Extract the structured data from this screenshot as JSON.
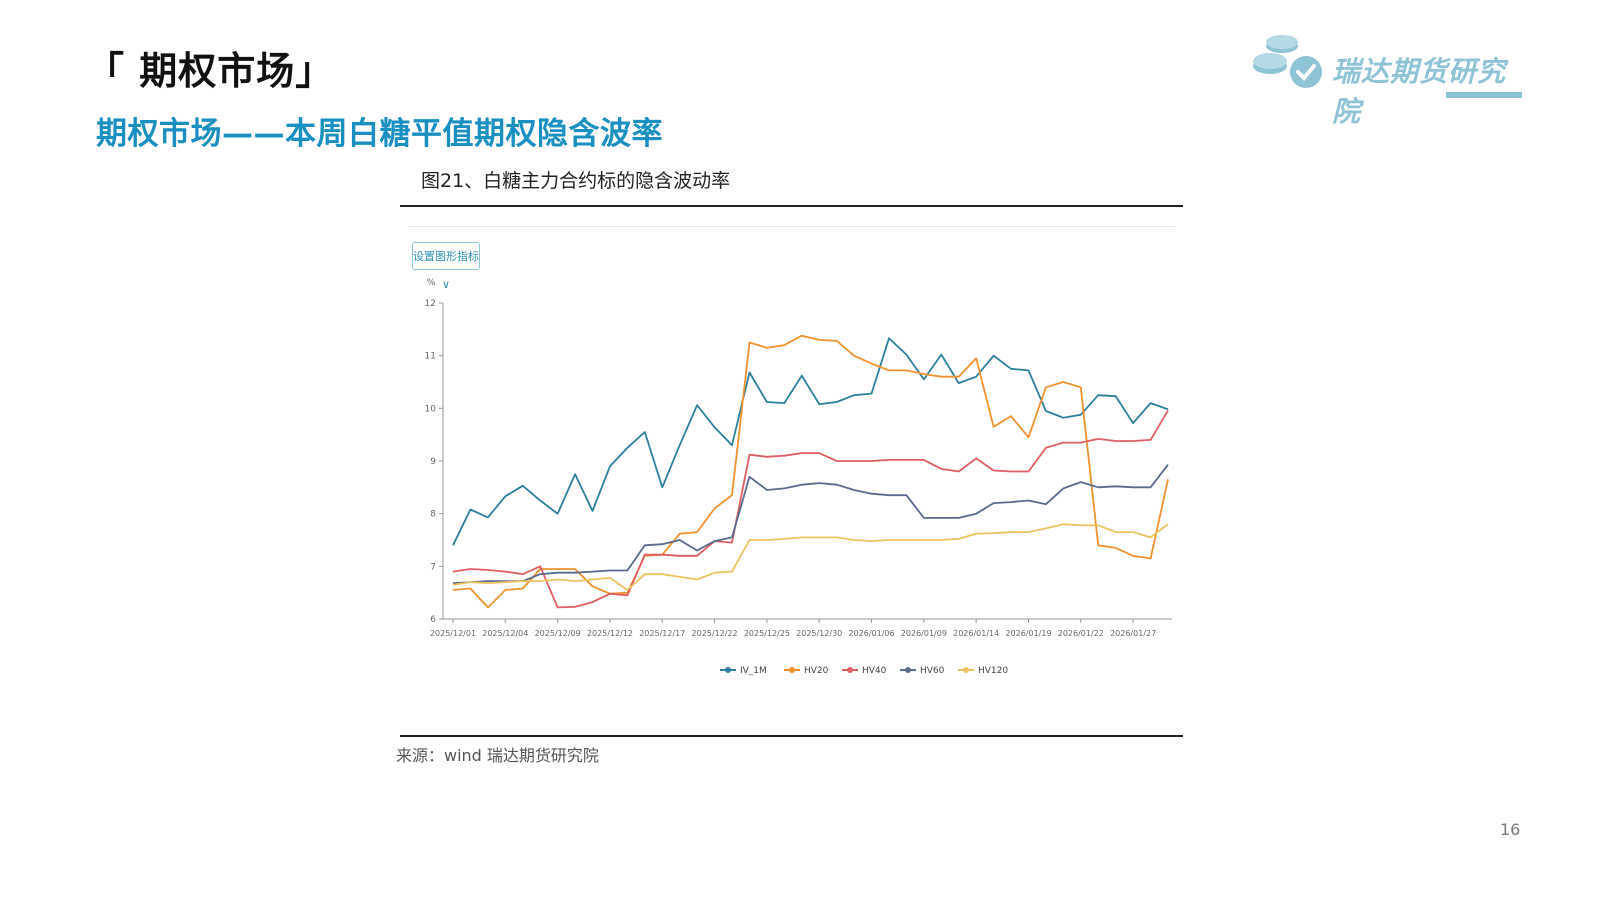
{
  "header": {
    "section_title": "「 期权市场」",
    "subtitle": "期权市场——本周白糖平值期权隐含波率",
    "logo_text": "瑞达期货研究院"
  },
  "figure": {
    "title": "图21、白糖主力合约标的隐含波动率",
    "button_label": "设置图形指标 ∨",
    "source": "来源：wind   瑞达期货研究院"
  },
  "page_number": "16",
  "colors": {
    "accent": "#1a8fc1",
    "logo": "#8fc3d6",
    "IV_1M": "#2d7f9f",
    "HV20": "#f0922e",
    "HV40": "#e05d61",
    "HV60": "#5a6a8e",
    "HV120": "#ecc35f"
  },
  "chart_data": {
    "type": "line",
    "ylabel": "%",
    "ylim": [
      6,
      12
    ],
    "yticks": [
      6,
      7,
      8,
      9,
      10,
      11,
      12
    ],
    "x_tick_labels": [
      "2025/12/01",
      "2025/12/04",
      "2025/12/09",
      "2025/12/12",
      "2025/12/17",
      "2025/12/22",
      "2025/12/25",
      "2025/12/30",
      "2026/01/06",
      "2026/01/09",
      "2026/01/14",
      "2026/01/19",
      "2026/01/22",
      "2026/01/27"
    ],
    "x_tick_index": [
      0,
      3,
      6,
      9,
      12,
      15,
      18,
      21,
      24,
      27,
      30,
      33,
      36,
      39
    ],
    "grid": false,
    "legend_position": "bottom-center",
    "series": [
      {
        "name": "IV_1M",
        "color": "#2d7f9f",
        "values": [
          7.4,
          8.08,
          7.93,
          8.33,
          8.53,
          8.25,
          8.0,
          8.75,
          8.05,
          8.9,
          9.25,
          9.55,
          8.5,
          9.3,
          10.06,
          9.64,
          9.3,
          10.68,
          10.12,
          10.1,
          10.62,
          10.08,
          10.12,
          10.25,
          10.28,
          11.33,
          11.02,
          10.55,
          11.02,
          10.48,
          10.6,
          11.0,
          10.75,
          10.72,
          9.95,
          9.82,
          9.88,
          10.25,
          10.23,
          9.72,
          10.1,
          9.98
        ]
      },
      {
        "name": "HV20",
        "color": "#f0922e",
        "values": [
          6.55,
          6.58,
          6.22,
          6.55,
          6.58,
          6.95,
          6.95,
          6.95,
          6.62,
          6.48,
          6.5,
          7.2,
          7.22,
          7.62,
          7.65,
          8.1,
          8.35,
          11.25,
          11.15,
          11.2,
          11.38,
          11.3,
          11.28,
          11.0,
          10.85,
          10.72,
          10.72,
          10.65,
          10.6,
          10.6,
          10.95,
          9.65,
          9.85,
          9.45,
          10.4,
          10.5,
          10.4,
          7.4,
          7.35,
          7.2,
          7.15,
          8.65
        ]
      },
      {
        "name": "HV40",
        "color": "#e05d61",
        "values": [
          6.9,
          6.95,
          6.93,
          6.9,
          6.85,
          7.0,
          6.22,
          6.23,
          6.32,
          6.48,
          6.45,
          7.22,
          7.22,
          7.2,
          7.2,
          7.48,
          7.45,
          9.12,
          9.08,
          9.1,
          9.15,
          9.15,
          9.0,
          9.0,
          9.0,
          9.02,
          9.02,
          9.02,
          8.85,
          8.8,
          9.05,
          8.82,
          8.8,
          8.8,
          9.25,
          9.35,
          9.35,
          9.42,
          9.38,
          9.38,
          9.4,
          9.96
        ]
      },
      {
        "name": "HV60",
        "color": "#5a6a8e",
        "values": [
          6.68,
          6.7,
          6.72,
          6.72,
          6.72,
          6.85,
          6.88,
          6.88,
          6.9,
          6.92,
          6.92,
          7.4,
          7.42,
          7.5,
          7.3,
          7.48,
          7.55,
          8.7,
          8.45,
          8.48,
          8.55,
          8.58,
          8.55,
          8.45,
          8.38,
          8.35,
          8.35,
          7.92,
          7.92,
          7.92,
          8.0,
          8.2,
          8.22,
          8.25,
          8.18,
          8.48,
          8.6,
          8.5,
          8.52,
          8.5,
          8.5,
          8.93
        ]
      },
      {
        "name": "HV120",
        "color": "#ecc35f",
        "values": [
          6.65,
          6.7,
          6.68,
          6.7,
          6.72,
          6.72,
          6.75,
          6.72,
          6.75,
          6.78,
          6.55,
          6.85,
          6.85,
          6.8,
          6.75,
          6.88,
          6.9,
          7.5,
          7.5,
          7.52,
          7.55,
          7.55,
          7.55,
          7.5,
          7.48,
          7.5,
          7.5,
          7.5,
          7.5,
          7.52,
          7.62,
          7.63,
          7.65,
          7.65,
          7.72,
          7.8,
          7.78,
          7.78,
          7.65,
          7.65,
          7.55,
          7.8
        ]
      }
    ]
  }
}
